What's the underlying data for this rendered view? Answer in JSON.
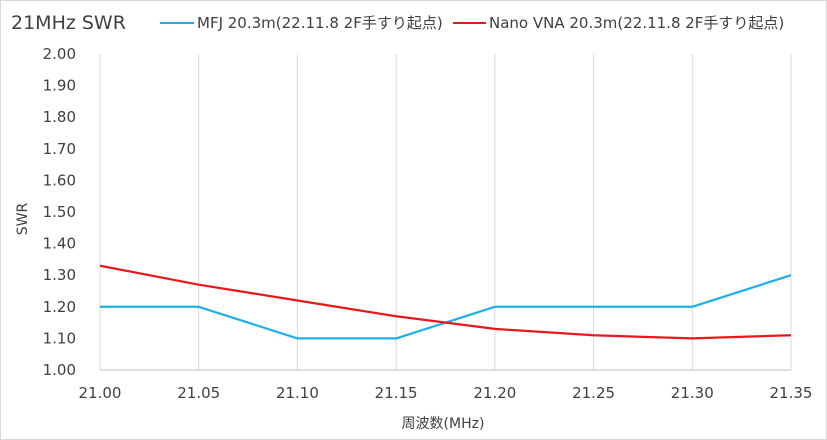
{
  "chart_data": {
    "type": "line",
    "title": "21MHz SWR",
    "xlabel": "周波数(MHz)",
    "ylabel": "SWR",
    "x": [
      21.0,
      21.05,
      21.1,
      21.15,
      21.2,
      21.25,
      21.3,
      21.35
    ],
    "x_tick_labels": [
      "21.00",
      "21.05",
      "21.10",
      "21.15",
      "21.20",
      "21.25",
      "21.30",
      "21.35"
    ],
    "y_tick_labels": [
      "1.00",
      "1.10",
      "1.20",
      "1.30",
      "1.40",
      "1.50",
      "1.60",
      "1.70",
      "1.80",
      "1.90",
      "2.00"
    ],
    "xlim": [
      21.0,
      21.35
    ],
    "ylim": [
      1.0,
      2.0
    ],
    "grid": "vertical",
    "legend_position": "top",
    "series": [
      {
        "name": "MFJ 20.3m(22.11.8 2F手すり起点)",
        "color": "#1fb0e6",
        "values": [
          1.2,
          1.2,
          1.1,
          1.1,
          1.2,
          1.2,
          1.2,
          1.3
        ]
      },
      {
        "name": "Nano VNA 20.3m(22.11.8 2F手すり起点)",
        "color": "#e5191c",
        "values": [
          1.33,
          1.27,
          1.22,
          1.17,
          1.13,
          1.11,
          1.1,
          1.11
        ]
      }
    ]
  }
}
